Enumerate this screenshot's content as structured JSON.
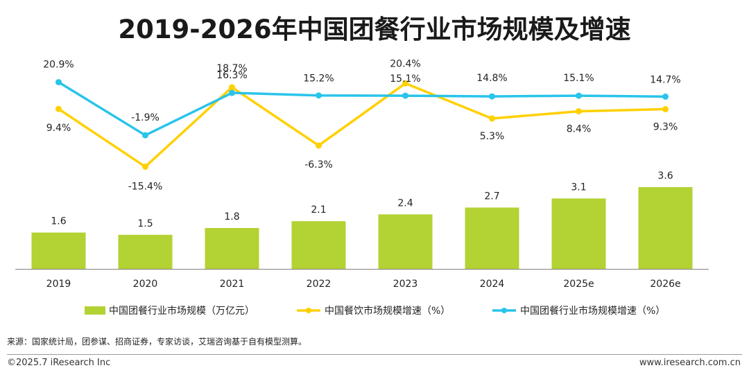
{
  "page": {
    "title": "2019-2026年中国团餐行业市场规模及增速",
    "source": "来源：国家统计局，团参谋、招商证券，专家访谈，艾瑞咨询基于自有模型测算。",
    "copyright": "©2025.7 iResearch Inc",
    "website": "www.iresearch.com.cn"
  },
  "chart_data": {
    "type": "bar",
    "categories": [
      "2019",
      "2020",
      "2021",
      "2022",
      "2023",
      "2024",
      "2025e",
      "2026e"
    ],
    "series": [
      {
        "name": "中国团餐行业市场规模（万亿元）",
        "type": "bar",
        "values": [
          1.6,
          1.5,
          1.8,
          2.1,
          2.4,
          2.7,
          3.1,
          3.6
        ],
        "labels": [
          "1.6",
          "1.5",
          "1.8",
          "2.1",
          "2.4",
          "2.7",
          "3.1",
          "3.6"
        ],
        "color": "#b3d234"
      },
      {
        "name": "中国餐饮市场规模增速（%）",
        "type": "line",
        "values": [
          9.4,
          -15.4,
          18.7,
          -6.3,
          20.4,
          5.3,
          8.4,
          9.3
        ],
        "labels": [
          "9.4%",
          "-15.4%",
          "18.7%",
          "-6.3%",
          "20.4%",
          "5.3%",
          "8.4%",
          "9.3%"
        ],
        "color": "#ffd000"
      },
      {
        "name": "中国团餐行业市场规模增速（%）",
        "type": "line",
        "values": [
          20.9,
          -1.9,
          16.3,
          15.2,
          15.1,
          14.8,
          15.1,
          14.7
        ],
        "labels": [
          "20.9%",
          "-1.9%",
          "16.3%",
          "15.2%",
          "15.1%",
          "14.8%",
          "15.1%",
          "14.7%"
        ],
        "color": "#29c4ea"
      }
    ],
    "legend": "bottom",
    "grid": false
  }
}
